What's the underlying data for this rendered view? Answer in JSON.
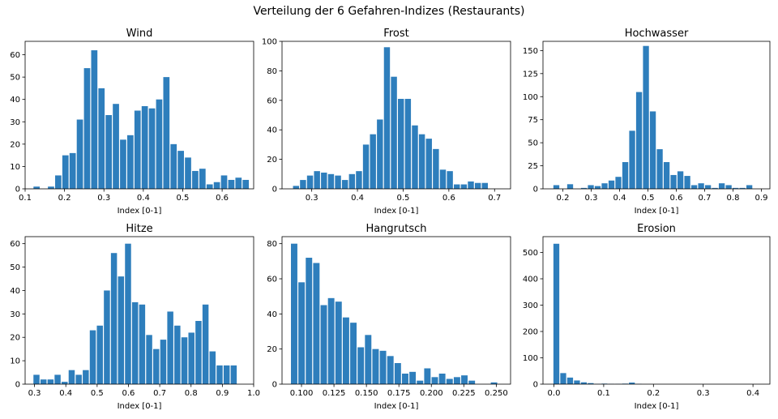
{
  "figure_title": "Verteilung der 6 Gefahren-Indizes (Restaurants)",
  "colors": {
    "bar": "#2e7ebc",
    "axis": "#000000",
    "background": "#ffffff"
  },
  "chart_data": [
    {
      "type": "bar",
      "title": "Wind",
      "xlabel": "Index [0-1]",
      "ylabel": "",
      "xlim": [
        0.1,
        0.68
      ],
      "ylim": [
        0,
        66
      ],
      "grid": false,
      "xticks": [
        0.1,
        0.2,
        0.3,
        0.4,
        0.5,
        0.6
      ],
      "xtick_labels": [
        "0.1",
        "0.2",
        "0.3",
        "0.4",
        "0.5",
        "0.6"
      ],
      "yticks": [
        0,
        10,
        20,
        30,
        40,
        50,
        60
      ],
      "ytick_labels": [
        "0",
        "10",
        "20",
        "30",
        "40",
        "50",
        "60"
      ],
      "bin_start": 0.12,
      "bin_width": 0.0183,
      "values": [
        1,
        0,
        1,
        6,
        15,
        16,
        31,
        54,
        62,
        45,
        33,
        38,
        22,
        24,
        35,
        37,
        36,
        40,
        50,
        20,
        17,
        14,
        8,
        9,
        2,
        3,
        6,
        4,
        5,
        4
      ]
    },
    {
      "type": "bar",
      "title": "Frost",
      "xlabel": "Index [0-1]",
      "ylabel": "",
      "xlim": [
        0.235,
        0.735
      ],
      "ylim": [
        0,
        100
      ],
      "grid": false,
      "xticks": [
        0.3,
        0.4,
        0.5,
        0.6,
        0.7
      ],
      "xtick_labels": [
        "0.3",
        "0.4",
        "0.5",
        "0.6",
        "0.7"
      ],
      "yticks": [
        0,
        20,
        40,
        60,
        80,
        100
      ],
      "ytick_labels": [
        "0",
        "20",
        "40",
        "60",
        "80",
        "100"
      ],
      "bin_start": 0.258,
      "bin_width": 0.0153,
      "values": [
        2,
        6,
        9,
        12,
        11,
        10,
        9,
        6,
        10,
        12,
        30,
        37,
        47,
        96,
        76,
        61,
        61,
        43,
        37,
        34,
        27,
        13,
        12,
        3,
        3,
        5,
        4,
        4
      ]
    },
    {
      "type": "bar",
      "title": "Hochwasser",
      "xlabel": "Index [0-1]",
      "ylabel": "",
      "xlim": [
        0.13,
        0.93
      ],
      "ylim": [
        0,
        160
      ],
      "grid": false,
      "xticks": [
        0.2,
        0.3,
        0.4,
        0.5,
        0.6,
        0.7,
        0.8,
        0.9
      ],
      "xtick_labels": [
        "0.2",
        "0.3",
        "0.4",
        "0.5",
        "0.6",
        "0.7",
        "0.8",
        "0.9"
      ],
      "yticks": [
        0,
        25,
        50,
        75,
        100,
        125,
        150
      ],
      "ytick_labels": [
        "0",
        "25",
        "50",
        "75",
        "100",
        "125",
        "150"
      ],
      "bin_start": 0.165,
      "bin_width": 0.0243,
      "values": [
        4,
        0,
        5,
        0,
        1,
        4,
        3,
        6,
        9,
        13,
        29,
        63,
        105,
        155,
        84,
        43,
        29,
        15,
        19,
        14,
        4,
        6,
        4,
        1,
        6,
        4,
        1,
        1,
        4,
        0
      ]
    },
    {
      "type": "bar",
      "title": "Hitze",
      "xlabel": "Index [0-1]",
      "ylabel": "",
      "xlim": [
        0.27,
        1.0
      ],
      "ylim": [
        0,
        63
      ],
      "grid": false,
      "xticks": [
        0.3,
        0.4,
        0.5,
        0.6,
        0.7,
        0.8,
        0.9,
        1.0
      ],
      "xtick_labels": [
        "0.3",
        "0.4",
        "0.5",
        "0.6",
        "0.7",
        "0.8",
        "0.9",
        "1.0"
      ],
      "yticks": [
        0,
        10,
        20,
        30,
        40,
        50,
        60
      ],
      "ytick_labels": [
        "0",
        "10",
        "20",
        "30",
        "40",
        "50",
        "60"
      ],
      "bin_start": 0.295,
      "bin_width": 0.0225,
      "values": [
        4,
        2,
        2,
        4,
        1,
        6,
        4,
        6,
        23,
        25,
        40,
        56,
        46,
        60,
        35,
        34,
        21,
        15,
        19,
        31,
        25,
        20,
        22,
        27,
        34,
        14,
        8,
        8,
        8
      ]
    },
    {
      "type": "bar",
      "title": "Hangrutsch",
      "xlabel": "Index [0-1]",
      "ylabel": "",
      "xlim": [
        0.085,
        0.261
      ],
      "ylim": [
        0,
        84
      ],
      "grid": false,
      "xticks": [
        0.1,
        0.125,
        0.15,
        0.175,
        0.2,
        0.225,
        0.25
      ],
      "xtick_labels": [
        "0.100",
        "0.125",
        "0.150",
        "0.175",
        "0.200",
        "0.225",
        "0.250"
      ],
      "yticks": [
        0,
        20,
        40,
        60,
        80
      ],
      "ytick_labels": [
        "0",
        "20",
        "40",
        "60",
        "80"
      ],
      "bin_start": 0.0915,
      "bin_width": 0.0057,
      "values": [
        80,
        58,
        72,
        69,
        45,
        49,
        47,
        38,
        35,
        21,
        28,
        20,
        19,
        16,
        12,
        6,
        7,
        2,
        9,
        4,
        6,
        3,
        4,
        5,
        2,
        0,
        0,
        1
      ]
    },
    {
      "type": "bar",
      "title": "Erosion",
      "xlabel": "Index [0-1]",
      "ylabel": "",
      "xlim": [
        -0.022,
        0.434
      ],
      "ylim": [
        0,
        560
      ],
      "grid": false,
      "xticks": [
        0.0,
        0.1,
        0.2,
        0.3,
        0.4
      ],
      "xtick_labels": [
        "0.0",
        "0.1",
        "0.2",
        "0.3",
        "0.4"
      ],
      "yticks": [
        0,
        100,
        200,
        300,
        400,
        500
      ],
      "ytick_labels": [
        "0",
        "100",
        "200",
        "300",
        "400",
        "500"
      ],
      "bin_start": -0.002,
      "bin_width": 0.0138,
      "values": [
        533,
        42,
        25,
        14,
        7,
        4,
        1,
        2,
        1,
        1,
        2,
        6,
        1,
        0,
        0,
        0,
        0,
        0,
        0,
        0,
        0,
        0,
        0,
        0,
        0,
        0,
        0,
        0,
        0,
        0
      ]
    }
  ]
}
